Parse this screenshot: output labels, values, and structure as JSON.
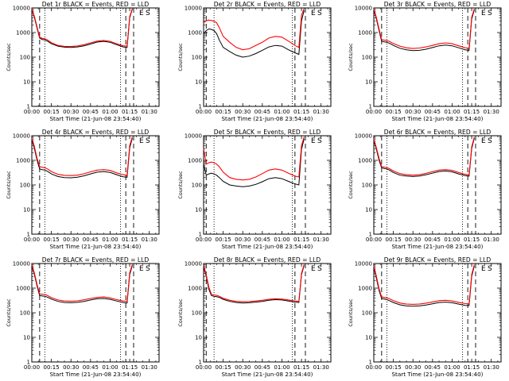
{
  "chart_data": [
    {
      "type": "line",
      "title": "Det 1r BLACK = Events, RED = LLD",
      "xlabel": "Start Time (21-Jun-08 23:54:40)",
      "ylabel": "Counts/sec",
      "x_ticks": [
        "00:00",
        "00:15",
        "00:30",
        "00:45",
        "01:00",
        "01:15",
        "01:30"
      ],
      "y_ticks": [
        "1",
        "10",
        "100",
        "1000",
        "10000"
      ],
      "ylim": [
        1,
        10000
      ],
      "y_scale": "log",
      "grid": false,
      "markers": [
        "E",
        "S"
      ],
      "x": [
        0,
        2,
        4,
        6,
        8,
        10,
        12,
        15,
        20,
        25,
        30,
        35,
        40,
        45,
        50,
        55,
        60,
        65,
        70,
        73,
        75,
        77
      ],
      "series": [
        {
          "color": "#000000",
          "values": [
            9000,
            4000,
            1500,
            600,
            520,
            500,
            450,
            350,
            280,
            255,
            250,
            260,
            290,
            340,
            410,
            440,
            400,
            320,
            260,
            250,
            4000,
            9000
          ]
        },
        {
          "color": "#ff0000",
          "values": [
            9500,
            4500,
            1700,
            650,
            580,
            560,
            500,
            390,
            300,
            275,
            270,
            285,
            320,
            380,
            450,
            480,
            440,
            350,
            290,
            280,
            4500,
            9500
          ]
        }
      ],
      "guides": {
        "dashed": [
          6,
          72,
          78
        ],
        "dotted": [
          10,
          68
        ]
      }
    },
    {
      "type": "line",
      "title": "Det 2r BLACK = Events, RED = LLD",
      "xlabel": "Start Time (21-Jun-08 23:54:40)",
      "ylabel": "Counts/sec",
      "x_ticks": [
        "00:00",
        "00:15",
        "00:30",
        "00:45",
        "01:00",
        "01:15",
        "01:30"
      ],
      "y_ticks": [
        "1",
        "10",
        "100",
        "1000",
        "10000"
      ],
      "ylim": [
        1,
        10000
      ],
      "y_scale": "log",
      "grid": false,
      "markers": [
        "E",
        "S"
      ],
      "x": [
        0,
        2,
        4,
        6,
        8,
        10,
        12,
        15,
        20,
        25,
        30,
        35,
        40,
        45,
        50,
        55,
        60,
        65,
        70,
        73,
        75,
        77
      ],
      "series": [
        {
          "color": "#000000",
          "values": [
            900,
            1200,
            1400,
            1350,
            1200,
            900,
            500,
            250,
            170,
            120,
            100,
            110,
            140,
            190,
            260,
            300,
            280,
            200,
            150,
            130,
            3000,
            8000
          ]
        },
        {
          "color": "#ff0000",
          "values": [
            2500,
            3000,
            3200,
            3100,
            2900,
            2500,
            1600,
            700,
            400,
            250,
            200,
            220,
            300,
            400,
            600,
            700,
            650,
            450,
            300,
            250,
            5000,
            9500
          ]
        }
      ],
      "guides": {
        "dashed": [
          2,
          70,
          78
        ],
        "dotted": [
          8,
          68
        ]
      }
    },
    {
      "type": "line",
      "title": "Det 3r BLACK = Events, RED = LLD",
      "xlabel": "Start Time (21-Jun-08 23:54:40)",
      "ylabel": "Counts/sec",
      "x_ticks": [
        "00:00",
        "00:15",
        "00:30",
        "00:45",
        "01:00",
        "01:15",
        "01:30"
      ],
      "y_ticks": [
        "1",
        "10",
        "100",
        "1000",
        "10000"
      ],
      "ylim": [
        1,
        10000
      ],
      "y_scale": "log",
      "grid": false,
      "markers": [
        "E",
        "S"
      ],
      "x": [
        0,
        2,
        4,
        6,
        8,
        10,
        12,
        15,
        20,
        25,
        30,
        35,
        40,
        45,
        50,
        55,
        60,
        65,
        70,
        73,
        75,
        77
      ],
      "series": [
        {
          "color": "#000000",
          "values": [
            8500,
            3500,
            1200,
            450,
            420,
            400,
            370,
            300,
            230,
            200,
            185,
            190,
            210,
            245,
            290,
            310,
            290,
            240,
            200,
            190,
            3500,
            8500
          ]
        },
        {
          "color": "#ff0000",
          "values": [
            9200,
            4000,
            1400,
            520,
            490,
            470,
            440,
            360,
            280,
            240,
            225,
            235,
            260,
            300,
            350,
            380,
            350,
            290,
            240,
            230,
            4200,
            9200
          ]
        }
      ],
      "guides": {
        "dashed": [
          6,
          72,
          78
        ],
        "dotted": [
          10,
          68
        ]
      }
    },
    {
      "type": "line",
      "title": "Det 4r BLACK = Events, RED = LLD",
      "xlabel": "Start Time (21-Jun-08 23:54:40)",
      "ylabel": "Counts/sec",
      "x_ticks": [
        "00:00",
        "00:15",
        "00:30",
        "00:45",
        "01:00",
        "01:15",
        "01:30"
      ],
      "y_ticks": [
        "1",
        "10",
        "100",
        "1000",
        "10000"
      ],
      "ylim": [
        1,
        10000
      ],
      "y_scale": "log",
      "grid": false,
      "markers": [
        "E",
        "S"
      ],
      "x": [
        0,
        2,
        4,
        6,
        8,
        10,
        12,
        15,
        20,
        25,
        30,
        35,
        40,
        45,
        50,
        55,
        60,
        65,
        70,
        73,
        75,
        77
      ],
      "series": [
        {
          "color": "#000000",
          "values": [
            7000,
            3000,
            1000,
            450,
            420,
            400,
            360,
            280,
            220,
            200,
            195,
            205,
            235,
            280,
            330,
            350,
            320,
            260,
            215,
            205,
            3200,
            8000
          ]
        },
        {
          "color": "#ff0000",
          "values": [
            8000,
            3600,
            1200,
            560,
            520,
            500,
            450,
            350,
            270,
            245,
            240,
            250,
            285,
            340,
            400,
            420,
            390,
            310,
            260,
            250,
            4000,
            9000
          ]
        }
      ],
      "guides": {
        "dashed": [
          6,
          72,
          78
        ],
        "dotted": [
          10,
          68
        ]
      }
    },
    {
      "type": "line",
      "title": "Det 5r BLACK = Events, RED = LLD",
      "xlabel": "Start Time (21-Jun-08 23:54:40)",
      "ylabel": "Counts/sec",
      "x_ticks": [
        "00:00",
        "00:15",
        "00:30",
        "00:45",
        "01:00",
        "01:15",
        "01:30"
      ],
      "y_ticks": [
        "1",
        "10",
        "100",
        "1000",
        "10000"
      ],
      "ylim": [
        1,
        10000
      ],
      "y_scale": "log",
      "grid": false,
      "markers": [
        "E",
        "S"
      ],
      "x": [
        0,
        2,
        4,
        6,
        8,
        10,
        12,
        15,
        20,
        25,
        30,
        35,
        40,
        45,
        50,
        55,
        60,
        65,
        70,
        73,
        75,
        77
      ],
      "series": [
        {
          "color": "#000000",
          "values": [
            700,
            250,
            280,
            300,
            280,
            250,
            200,
            140,
            100,
            90,
            85,
            90,
            105,
            135,
            180,
            200,
            180,
            140,
            110,
            100,
            2800,
            7500
          ]
        },
        {
          "color": "#ff0000",
          "values": [
            3000,
            700,
            800,
            850,
            800,
            700,
            550,
            330,
            200,
            170,
            160,
            170,
            210,
            290,
            400,
            450,
            400,
            300,
            230,
            210,
            4000,
            9000
          ]
        }
      ],
      "guides": {
        "dashed": [
          2,
          70,
          78
        ],
        "dotted": [
          8,
          68
        ]
      }
    },
    {
      "type": "line",
      "title": "Det 6r BLACK = Events, RED = LLD",
      "xlabel": "Start Time (21-Jun-08 23:54:40)",
      "ylabel": "Counts/sec",
      "x_ticks": [
        "00:00",
        "00:15",
        "00:30",
        "00:45",
        "01:00",
        "01:15",
        "01:30"
      ],
      "y_ticks": [
        "1",
        "10",
        "100",
        "1000",
        "10000"
      ],
      "ylim": [
        1,
        10000
      ],
      "y_scale": "log",
      "grid": false,
      "markers": [
        "E",
        "S"
      ],
      "x": [
        0,
        2,
        4,
        6,
        8,
        10,
        12,
        15,
        20,
        25,
        30,
        35,
        40,
        45,
        50,
        55,
        60,
        65,
        70,
        73,
        75,
        77
      ],
      "series": [
        {
          "color": "#000000",
          "values": [
            6500,
            2800,
            1000,
            500,
            470,
            450,
            400,
            320,
            250,
            230,
            220,
            230,
            260,
            300,
            350,
            370,
            340,
            280,
            240,
            230,
            3000,
            8000
          ]
        },
        {
          "color": "#ff0000",
          "values": [
            7200,
            3200,
            1200,
            560,
            530,
            510,
            460,
            370,
            290,
            260,
            250,
            260,
            295,
            345,
            400,
            420,
            390,
            320,
            270,
            260,
            3600,
            8800
          ]
        }
      ],
      "guides": {
        "dashed": [
          6,
          72,
          78
        ],
        "dotted": [
          10,
          68
        ]
      }
    },
    {
      "type": "line",
      "title": "Det 7r BLACK = Events, RED = LLD",
      "xlabel": "Start Time (21-Jun-08 23:54:40)",
      "ylabel": "Counts/sec",
      "x_ticks": [
        "00:00",
        "00:15",
        "00:30",
        "00:45",
        "01:00",
        "01:15",
        "01:30"
      ],
      "y_ticks": [
        "1",
        "10",
        "100",
        "1000",
        "10000"
      ],
      "ylim": [
        1,
        10000
      ],
      "y_scale": "log",
      "grid": false,
      "markers": [
        "E",
        "S"
      ],
      "x": [
        0,
        2,
        4,
        6,
        8,
        10,
        12,
        15,
        20,
        25,
        30,
        35,
        40,
        45,
        50,
        55,
        60,
        65,
        70,
        73,
        75,
        77
      ],
      "series": [
        {
          "color": "#000000",
          "values": [
            8000,
            3500,
            1200,
            500,
            480,
            470,
            430,
            360,
            290,
            260,
            255,
            265,
            290,
            330,
            370,
            380,
            350,
            300,
            260,
            250,
            3500,
            8500
          ]
        },
        {
          "color": "#ff0000",
          "values": [
            9000,
            4000,
            1400,
            580,
            560,
            550,
            500,
            410,
            330,
            300,
            295,
            305,
            335,
            380,
            420,
            440,
            400,
            340,
            300,
            290,
            4200,
            9300
          ]
        }
      ],
      "guides": {
        "dashed": [
          6,
          72,
          78
        ],
        "dotted": [
          10,
          68
        ]
      }
    },
    {
      "type": "line",
      "title": "Det 8r BLACK = Events, RED = LLD",
      "xlabel": "Start Time (21-Jun-08 23:54:40)",
      "ylabel": "Counts/sec",
      "x_ticks": [
        "00:00",
        "00:15",
        "00:30",
        "00:45",
        "01:00",
        "01:15",
        "01:30"
      ],
      "y_ticks": [
        "1",
        "10",
        "100",
        "1000",
        "10000"
      ],
      "ylim": [
        1,
        10000
      ],
      "y_scale": "log",
      "grid": false,
      "markers": [
        "E",
        "S"
      ],
      "x": [
        0,
        2,
        4,
        6,
        8,
        10,
        12,
        15,
        20,
        25,
        30,
        35,
        40,
        45,
        50,
        55,
        60,
        65,
        70,
        73,
        75,
        77
      ],
      "series": [
        {
          "color": "#000000",
          "values": [
            7500,
            3000,
            900,
            500,
            470,
            450,
            420,
            350,
            290,
            260,
            250,
            255,
            270,
            290,
            320,
            340,
            330,
            300,
            270,
            260,
            3500,
            8500
          ]
        },
        {
          "color": "#ff0000",
          "values": [
            8500,
            3500,
            1100,
            560,
            530,
            510,
            470,
            390,
            320,
            290,
            280,
            285,
            300,
            320,
            350,
            370,
            360,
            330,
            300,
            290,
            4000,
            9200
          ]
        }
      ],
      "guides": {
        "dashed": [
          2,
          70,
          78
        ],
        "dotted": [
          8,
          68
        ]
      }
    },
    {
      "type": "line",
      "title": "Det 9r BLACK = Events, RED = LLD",
      "xlabel": "Start Time (21-Jun-08 23:54:40)",
      "ylabel": "Counts/sec",
      "x_ticks": [
        "00:00",
        "00:15",
        "00:30",
        "00:45",
        "01:00",
        "01:15",
        "01:30"
      ],
      "y_ticks": [
        "1",
        "10",
        "100",
        "1000",
        "10000"
      ],
      "ylim": [
        1,
        10000
      ],
      "y_scale": "log",
      "grid": false,
      "markers": [
        "E",
        "S"
      ],
      "x": [
        0,
        2,
        4,
        6,
        8,
        10,
        12,
        15,
        20,
        25,
        30,
        35,
        40,
        45,
        50,
        55,
        60,
        65,
        70,
        73,
        75,
        77
      ],
      "series": [
        {
          "color": "#000000",
          "values": [
            7000,
            2500,
            800,
            380,
            360,
            340,
            310,
            260,
            210,
            190,
            185,
            190,
            205,
            230,
            260,
            270,
            255,
            225,
            200,
            195,
            3000,
            8000
          ]
        },
        {
          "color": "#ff0000",
          "values": [
            8000,
            3000,
            950,
            440,
            420,
            400,
            370,
            310,
            250,
            225,
            220,
            225,
            245,
            275,
            310,
            320,
            300,
            265,
            235,
            230,
            3600,
            9000
          ]
        }
      ],
      "guides": {
        "dashed": [
          6,
          72,
          78
        ],
        "dotted": [
          10,
          68
        ]
      }
    }
  ]
}
